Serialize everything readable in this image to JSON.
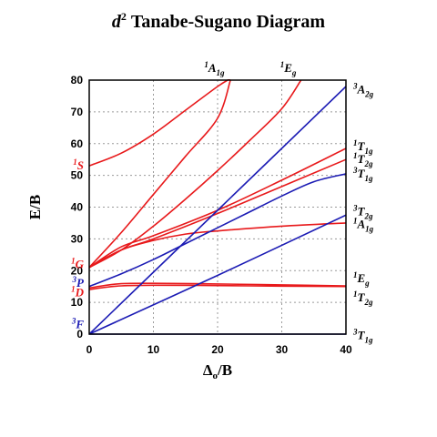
{
  "chart_data": {
    "type": "line",
    "title": {
      "main": "Tanabe-Sugano Diagram",
      "config": "d",
      "config_sup": "2"
    },
    "xlabel": {
      "delta": "Δ",
      "sub": "o",
      "rest": "/B"
    },
    "ylabel": "E/B",
    "xlim": [
      0,
      40
    ],
    "ylim": [
      0,
      80
    ],
    "xticks": [
      "0",
      "10",
      "20",
      "30",
      "40"
    ],
    "yticks": [
      "0",
      "10",
      "20",
      "30",
      "40",
      "50",
      "60",
      "70",
      "80"
    ],
    "grid": true,
    "colors": {
      "singlet": "#e8191b",
      "triplet": "#1b1bb4",
      "grid": "#9a9a9a",
      "axis": "#000000"
    },
    "series": [
      {
        "color": "singlet",
        "x": [
          0,
          5,
          10,
          15,
          20,
          22
        ],
        "y": [
          53,
          57,
          63,
          70.5,
          78,
          80.5
        ]
      },
      {
        "color": "singlet",
        "x": [
          0,
          5,
          10,
          15,
          20,
          22
        ],
        "y": [
          21,
          32,
          44,
          56,
          68,
          80
        ]
      },
      {
        "color": "singlet",
        "x": [
          0,
          5,
          10,
          15,
          20,
          25,
          30,
          33
        ],
        "y": [
          21,
          26.5,
          34,
          42.5,
          51.5,
          61,
          71,
          80
        ]
      },
      {
        "color": "singlet",
        "x": [
          0,
          5,
          10,
          20,
          30,
          40
        ],
        "y": [
          21,
          27.5,
          31,
          39,
          48.5,
          58.5
        ]
      },
      {
        "color": "singlet",
        "x": [
          0,
          5,
          10,
          20,
          30,
          40
        ],
        "y": [
          21,
          26.5,
          30,
          38,
          46.5,
          55
        ]
      },
      {
        "color": "singlet",
        "x": [
          0,
          5,
          10,
          15,
          20,
          30,
          40
        ],
        "y": [
          21,
          26.5,
          29.5,
          31.5,
          32.5,
          34,
          35
        ]
      },
      {
        "color": "singlet",
        "x": [
          0,
          2,
          5,
          10,
          20,
          30,
          40
        ],
        "y": [
          14.5,
          15.2,
          15.9,
          16,
          15.8,
          15.5,
          15.2
        ]
      },
      {
        "color": "singlet",
        "x": [
          0,
          2,
          5,
          10,
          20,
          30,
          40
        ],
        "y": [
          14,
          14.6,
          15.2,
          15.4,
          15.3,
          15.1,
          15.0
        ]
      },
      {
        "color": "triplet",
        "x": [
          0,
          5,
          10,
          15,
          20,
          25,
          30,
          35,
          40
        ],
        "y": [
          15,
          19,
          23.5,
          28.5,
          33.5,
          38.5,
          43.5,
          48,
          50.5
        ]
      },
      {
        "color": "triplet",
        "x": [
          0,
          20,
          40
        ],
        "y": [
          0,
          39,
          78
        ]
      },
      {
        "color": "triplet",
        "x": [
          0,
          20,
          40
        ],
        "y": [
          0,
          18.5,
          37.5
        ]
      },
      {
        "color": "triplet",
        "x": [
          0,
          40
        ],
        "y": [
          0,
          0
        ]
      }
    ],
    "left_terms": [
      {
        "sup": "1",
        "letter": "S",
        "color": "singlet",
        "y": 53
      },
      {
        "sup": "1",
        "letter": "G",
        "color": "singlet",
        "y": 22
      },
      {
        "sup": "3",
        "letter": "P",
        "color": "triplet",
        "y": 16
      },
      {
        "sup": "1",
        "letter": "D",
        "color": "singlet",
        "y": 13
      },
      {
        "sup": "3",
        "letter": "F",
        "color": "triplet",
        "y": 3
      }
    ],
    "right_terms": [
      {
        "sup": "3",
        "letter": "A",
        "sub": "2g",
        "y": 77
      },
      {
        "sup": "1",
        "letter": "T",
        "sub": "1g",
        "y": 59
      },
      {
        "sup": "1",
        "letter": "T",
        "sub": "2g",
        "y": 55
      },
      {
        "sup": "3",
        "letter": "T",
        "sub": "1g",
        "y": 50.5
      },
      {
        "sup": "3",
        "letter": "T",
        "sub": "2g",
        "y": 38.5
      },
      {
        "sup": "1",
        "letter": "A",
        "sub": "1g",
        "y": 34.5
      },
      {
        "sup": "1",
        "letter": "E",
        "sub": "g",
        "y": 17.5
      },
      {
        "sup": "1",
        "letter": "T",
        "sub": "2g",
        "y": 11.5
      },
      {
        "sup": "3",
        "letter": "T",
        "sub": "1g",
        "y": -0.5
      }
    ],
    "top_terms": [
      {
        "sup": "1",
        "letter": "A",
        "sub": "1g",
        "x": 19.5
      },
      {
        "sup": "1",
        "letter": "E",
        "sub": "g",
        "x": 31
      }
    ]
  }
}
